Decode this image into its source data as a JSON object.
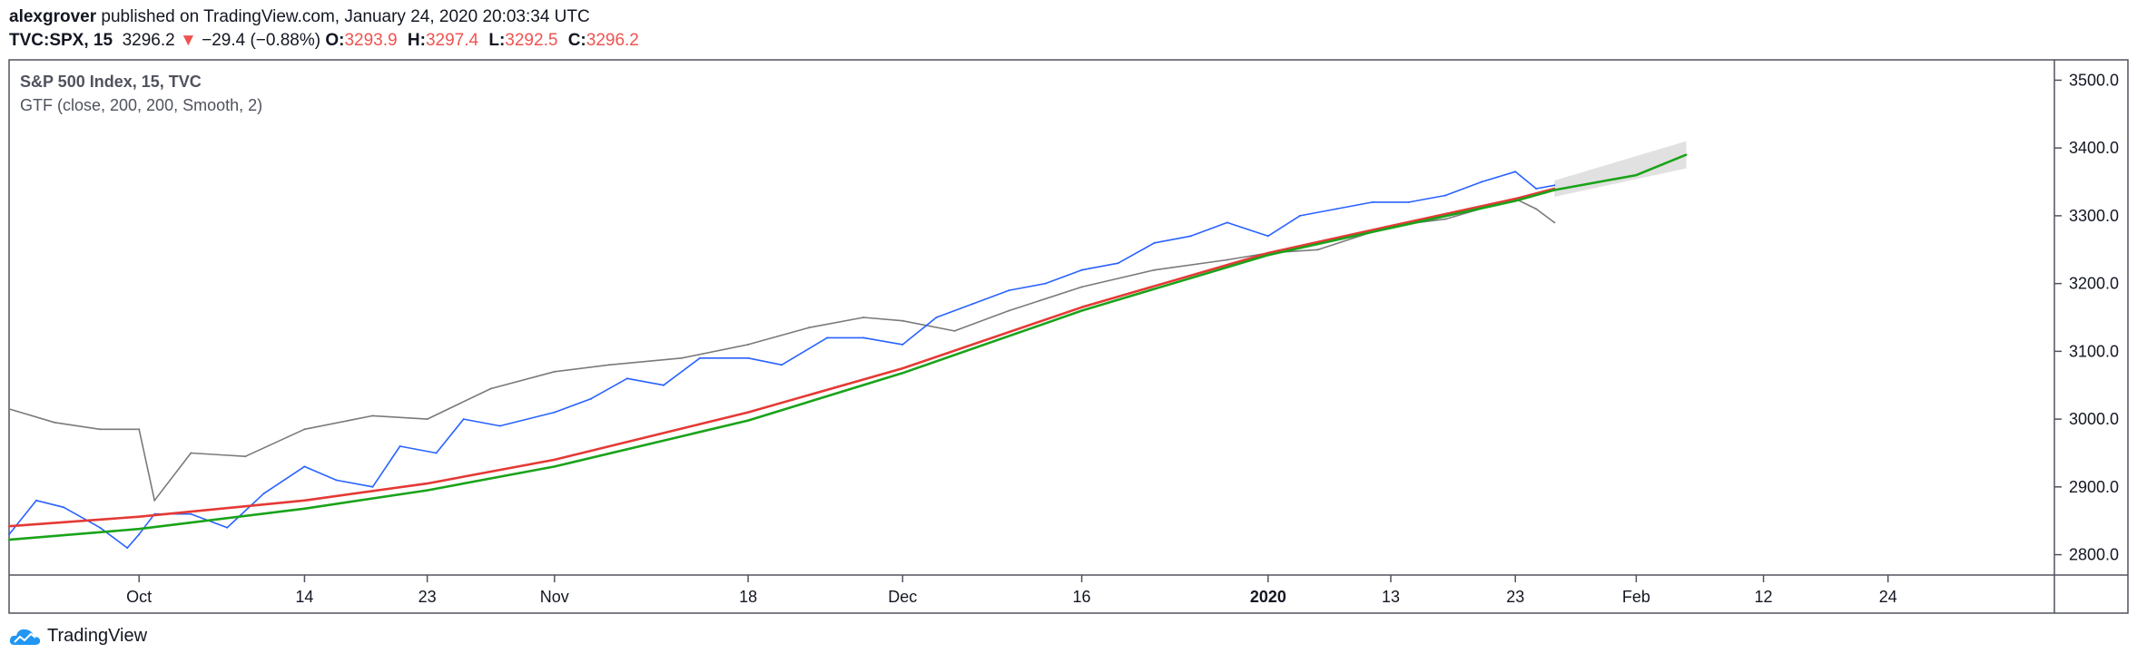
{
  "header": {
    "author": "alexgrover",
    "published_text": "published on TradingView.com, January 24, 2020 20:03:34 UTC"
  },
  "ticker": {
    "symbol": "TVC:SPX, 15",
    "last": "3296.2",
    "arrow": "▼",
    "change": "−29.4 (−0.88%)",
    "o_label": "O:",
    "o_value": "3293.9",
    "h_label": "H:",
    "h_value": "3297.4",
    "l_label": "L:",
    "l_value": "3292.5",
    "c_label": "C:",
    "c_value": "3296.2"
  },
  "legend": {
    "title": "S&P 500 Index, 15, TVC",
    "indicator": "GTF (close, 200, 200, Smooth, 2)"
  },
  "footer": {
    "brand": "TradingView"
  },
  "chart_data": {
    "type": "line",
    "ylim": [
      2770,
      3530
    ],
    "y_ticks": [
      "2800.0",
      "2900.0",
      "3000.0",
      "3100.0",
      "3200.0",
      "3300.0",
      "3400.0",
      "3500.0"
    ],
    "y_tick_values": [
      2800,
      2900,
      3000,
      3100,
      3200,
      3300,
      3400,
      3500
    ],
    "x_ticks": [
      {
        "label": "Oct",
        "bold": false
      },
      {
        "label": "14",
        "bold": false
      },
      {
        "label": "23",
        "bold": false
      },
      {
        "label": "Nov",
        "bold": false
      },
      {
        "label": "18",
        "bold": false
      },
      {
        "label": "Dec",
        "bold": false
      },
      {
        "label": "16",
        "bold": false
      },
      {
        "label": "2020",
        "bold": true
      },
      {
        "label": "13",
        "bold": false
      },
      {
        "label": "23",
        "bold": false
      },
      {
        "label": "Feb",
        "bold": false
      },
      {
        "label": "12",
        "bold": false
      },
      {
        "label": "24",
        "bold": false
      }
    ],
    "x_tick_index": [
      143,
      325,
      460,
      600,
      813,
      983,
      1180,
      1385,
      1520,
      1657,
      1790,
      1930,
      2067
    ],
    "x_range": [
      0,
      2250
    ],
    "series": [
      {
        "color": "#7a7a7a",
        "x": [
          0,
          50,
          100,
          143,
          160,
          200,
          260,
          325,
          400,
          460,
          530,
          600,
          660,
          740,
          813,
          880,
          940,
          983,
          1040,
          1100,
          1180,
          1260,
          1340,
          1385,
          1440,
          1520,
          1580,
          1657,
          1680,
          1700
        ],
        "values": [
          3015,
          2995,
          2985,
          2985,
          2880,
          2950,
          2945,
          2985,
          3005,
          3000,
          3045,
          3070,
          3080,
          3090,
          3110,
          3135,
          3150,
          3145,
          3130,
          3160,
          3195,
          3220,
          3235,
          3245,
          3250,
          3285,
          3295,
          3325,
          3310,
          3290
        ]
      },
      {
        "color": "#2962ff",
        "x": [
          0,
          30,
          60,
          100,
          130,
          143,
          160,
          200,
          240,
          280,
          325,
          360,
          400,
          430,
          470,
          500,
          540,
          600,
          640,
          680,
          720,
          760,
          813,
          850,
          900,
          940,
          983,
          1020,
          1060,
          1100,
          1140,
          1180,
          1220,
          1260,
          1300,
          1340,
          1385,
          1420,
          1460,
          1500,
          1540,
          1580,
          1620,
          1657,
          1680,
          1700
        ],
        "values": [
          2830,
          2880,
          2870,
          2840,
          2810,
          2830,
          2860,
          2860,
          2840,
          2890,
          2930,
          2910,
          2900,
          2960,
          2950,
          3000,
          2990,
          3010,
          3030,
          3060,
          3050,
          3090,
          3090,
          3080,
          3120,
          3120,
          3110,
          3150,
          3170,
          3190,
          3200,
          3220,
          3230,
          3260,
          3270,
          3290,
          3270,
          3300,
          3310,
          3320,
          3320,
          3330,
          3350,
          3365,
          3340,
          3345
        ]
      },
      {
        "color": "#e53935",
        "x": [
          0,
          143,
          325,
          460,
          600,
          813,
          983,
          1180,
          1385,
          1520,
          1657,
          1700
        ],
        "values": [
          2842,
          2856,
          2880,
          2905,
          2940,
          3010,
          3075,
          3165,
          3245,
          3285,
          3325,
          3340
        ]
      },
      {
        "color": "#1aa31a",
        "x": [
          0,
          143,
          325,
          460,
          600,
          813,
          983,
          1180,
          1385,
          1520,
          1657,
          1700,
          1790,
          1845
        ],
        "values": [
          2822,
          2838,
          2868,
          2895,
          2930,
          2998,
          3068,
          3160,
          3242,
          3282,
          3322,
          3338,
          3360,
          3390
        ]
      }
    ],
    "band": {
      "x": [
        1700,
        1845
      ],
      "upper": [
        3352,
        3410
      ],
      "lower": [
        3328,
        3370
      ]
    }
  }
}
